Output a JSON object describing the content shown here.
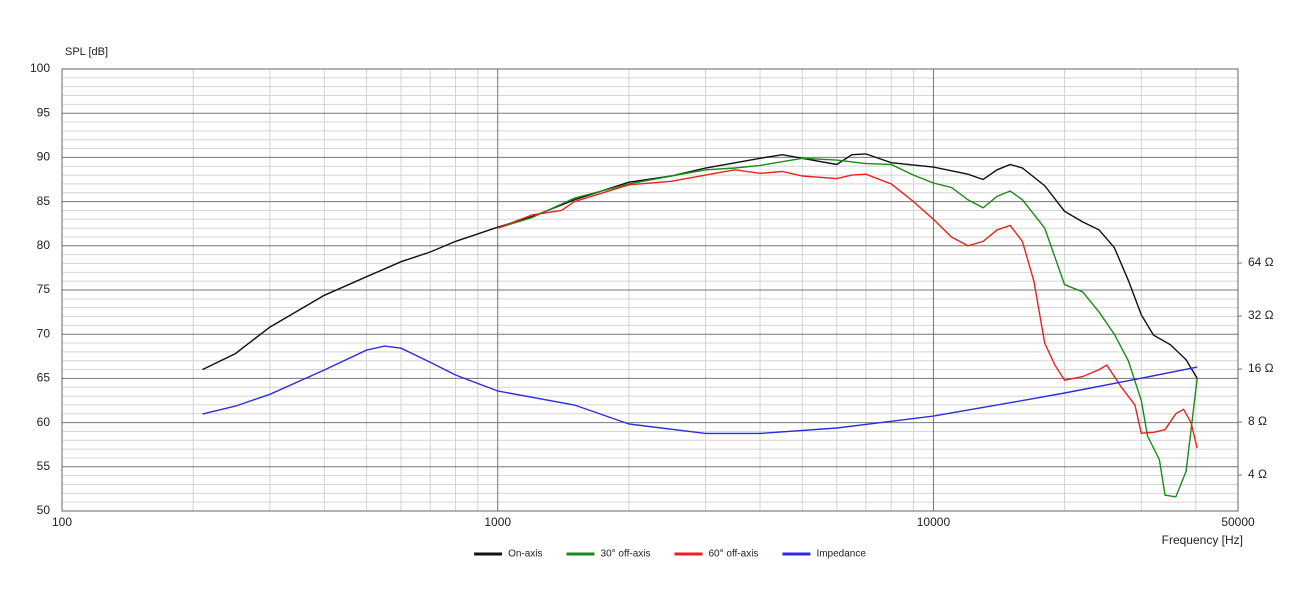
{
  "chart_data": {
    "type": "line",
    "x_label": "Frequency [Hz]",
    "y_label": "SPL [dB]",
    "xscale": "log",
    "y2scale": "log",
    "grid": true,
    "minor_grid": true,
    "legend": "bottom",
    "xlim": [
      100,
      50000
    ],
    "xticks": [
      100,
      1000,
      10000,
      50000
    ],
    "ylim": [
      50,
      100
    ],
    "yticks": [
      50,
      55,
      60,
      65,
      70,
      75,
      80,
      85,
      90,
      95,
      100
    ],
    "y2lim": [
      2.5,
      809
    ],
    "y2ticks": [
      {
        "value": 4,
        "label": "4 Ω"
      },
      {
        "value": 8,
        "label": "8 Ω"
      },
      {
        "value": 16,
        "label": "16 Ω"
      },
      {
        "value": 32,
        "label": "32 Ω"
      },
      {
        "value": 64,
        "label": "64 Ω"
      }
    ],
    "series": [
      {
        "name": "On-axis",
        "color": "#111111",
        "x": [
          210,
          250,
          300,
          400,
          500,
          600,
          700,
          800,
          1000,
          1200,
          1500,
          2000,
          2500,
          3000,
          4000,
          4500,
          5000,
          6000,
          6500,
          7000,
          8000,
          10000,
          12000,
          13000,
          14000,
          15000,
          16000,
          18000,
          20000,
          22000,
          24000,
          26000,
          28000,
          30000,
          32000,
          35000,
          38000,
          40300
        ],
        "values": [
          66.0,
          67.8,
          70.8,
          74.4,
          76.5,
          78.2,
          79.3,
          80.5,
          82.1,
          83.3,
          85.2,
          87.2,
          87.9,
          88.8,
          89.9,
          90.3,
          89.9,
          89.2,
          90.3,
          90.4,
          89.4,
          88.9,
          88.1,
          87.5,
          88.6,
          89.2,
          88.8,
          86.8,
          83.9,
          82.7,
          81.8,
          79.8,
          76.1,
          72.2,
          69.9,
          68.8,
          67.1,
          65.0
        ]
      },
      {
        "name": "30° off-axis",
        "color": "#1a8a1a",
        "x": [
          1000,
          1200,
          1500,
          2000,
          2500,
          3000,
          3500,
          4000,
          5000,
          6000,
          7000,
          8000,
          9000,
          10000,
          11000,
          12000,
          13000,
          14000,
          15000,
          16000,
          18000,
          20000,
          22000,
          24000,
          26000,
          28000,
          30000,
          31000,
          33000,
          34000,
          36000,
          38000,
          40300
        ],
        "values": [
          82.0,
          83.2,
          85.4,
          87.0,
          87.9,
          88.6,
          88.8,
          89.1,
          89.9,
          89.7,
          89.3,
          89.2,
          88.0,
          87.1,
          86.6,
          85.2,
          84.3,
          85.6,
          86.2,
          85.2,
          82.0,
          75.6,
          74.8,
          72.5,
          70.0,
          67.0,
          62.5,
          58.5,
          55.8,
          51.8,
          51.6,
          54.5,
          65.0
        ]
      },
      {
        "name": "60° off-axis",
        "color": "#e8231f",
        "x": [
          1000,
          1200,
          1400,
          1500,
          2000,
          2500,
          3000,
          3500,
          4000,
          4500,
          5000,
          6000,
          6500,
          7000,
          8000,
          9000,
          10000,
          11000,
          12000,
          13000,
          14000,
          15000,
          16000,
          17000,
          18000,
          19000,
          20000,
          22000,
          24000,
          25000,
          27000,
          29000,
          30000,
          32000,
          34000,
          36000,
          37500,
          39000,
          40300
        ],
        "values": [
          82.0,
          83.5,
          84.0,
          85.0,
          86.9,
          87.3,
          88.0,
          88.6,
          88.2,
          88.4,
          87.9,
          87.6,
          88.0,
          88.1,
          87.0,
          85.0,
          83.0,
          81.0,
          80.0,
          80.5,
          81.8,
          82.3,
          80.5,
          76.0,
          69.0,
          66.5,
          64.8,
          65.2,
          66.0,
          66.5,
          64.0,
          62.0,
          58.8,
          58.9,
          59.2,
          61.0,
          61.5,
          60.0,
          57.1
        ]
      },
      {
        "name": "Impedance",
        "color": "#2d2de0",
        "axis": "y2",
        "x": [
          210,
          250,
          300,
          400,
          500,
          550,
          600,
          700,
          800,
          1000,
          1500,
          2000,
          3000,
          4000,
          6000,
          10000,
          15000,
          20000,
          30000,
          40300
        ],
        "values": [
          8.88,
          9.86,
          11.5,
          15.8,
          20.5,
          21.6,
          21.0,
          17.5,
          14.8,
          12.0,
          10.0,
          7.8,
          6.9,
          6.9,
          7.4,
          8.65,
          10.3,
          11.7,
          14.2,
          16.4
        ]
      }
    ]
  }
}
